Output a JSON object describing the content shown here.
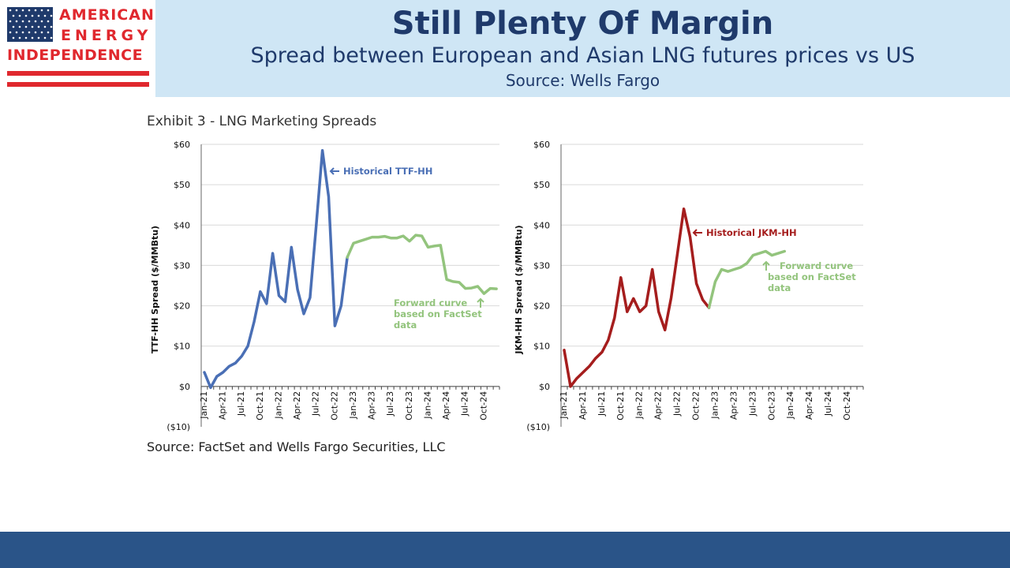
{
  "logo": {
    "line1": "AMERICAN",
    "line2": "ENERGY",
    "line3": "INDEPENDENCE",
    "colors": {
      "red": "#e0282e",
      "blue": "#1f3a6b"
    }
  },
  "header": {
    "title": "Still Plenty Of Margin",
    "subtitle": "Spread between European and Asian LNG futures prices vs US",
    "source": "Source: Wells Fargo"
  },
  "exhibit_title": "Exhibit 3 - LNG Marketing Spreads",
  "footnote": "Source: FactSet and Wells Fargo Securities, LLC",
  "colors": {
    "historical_ttf": "#4a6fb5",
    "historical_jkm": "#a51d1d",
    "forward": "#93c47d",
    "footer": "#2a5488"
  },
  "chart_data": [
    {
      "type": "line",
      "ylabel": "TTF-HH Spread ($/MMBtu)",
      "ylim": [
        -10,
        60
      ],
      "yticks": [
        "($10)",
        "$0",
        "$10",
        "$20",
        "$30",
        "$40",
        "$50",
        "$60"
      ],
      "xtick_labels": [
        "Jan-21",
        "Apr-21",
        "Jul-21",
        "Oct-21",
        "Jan-22",
        "Apr-22",
        "Jul-22",
        "Oct-22",
        "Jan-23",
        "Apr-23",
        "Jul-23",
        "Oct-23",
        "Jan-24",
        "Apr-24",
        "Jul-24",
        "Oct-24"
      ],
      "grid": true,
      "series": [
        {
          "name": "Historical TTF-HH",
          "annotation": "Historical TTF-HH",
          "points": [
            [
              0,
              3.5
            ],
            [
              1,
              -0.3
            ],
            [
              2,
              2.5
            ],
            [
              3,
              3.5
            ],
            [
              4,
              5
            ],
            [
              5,
              5.8
            ],
            [
              6,
              7.5
            ],
            [
              7,
              10
            ],
            [
              8,
              16
            ],
            [
              9,
              23.5
            ],
            [
              10,
              20.5
            ],
            [
              11,
              33
            ],
            [
              12,
              22.5
            ],
            [
              13,
              21
            ],
            [
              14,
              34.5
            ],
            [
              15,
              24
            ],
            [
              16,
              18
            ],
            [
              17,
              22
            ],
            [
              18,
              40
            ],
            [
              19,
              58.5
            ],
            [
              20,
              47
            ],
            [
              21,
              15
            ],
            [
              22,
              20
            ],
            [
              23,
              32
            ]
          ]
        },
        {
          "name": "Forward curve",
          "annotation": [
            "Forward curve",
            "based on FactSet",
            "data"
          ],
          "points": [
            [
              23,
              32
            ],
            [
              24,
              35.5
            ],
            [
              25,
              36
            ],
            [
              26,
              36.5
            ],
            [
              27,
              37
            ],
            [
              28,
              37
            ],
            [
              29,
              37.2
            ],
            [
              30,
              36.8
            ],
            [
              31,
              36.8
            ],
            [
              32,
              37.3
            ],
            [
              33,
              36
            ],
            [
              34,
              37.5
            ],
            [
              35,
              37.3
            ],
            [
              36,
              34.5
            ],
            [
              37,
              34.8
            ],
            [
              38,
              35
            ],
            [
              39,
              26.5
            ],
            [
              40,
              26
            ],
            [
              41,
              25.8
            ],
            [
              42,
              24.3
            ],
            [
              43,
              24.4
            ],
            [
              44,
              24.8
            ],
            [
              45,
              23
            ],
            [
              46,
              24.3
            ],
            [
              47,
              24.2
            ]
          ]
        }
      ]
    },
    {
      "type": "line",
      "ylabel": "JKM-HH Spread ($/MMBtu)",
      "ylim": [
        -10,
        60
      ],
      "yticks": [
        "($10)",
        "$0",
        "$10",
        "$20",
        "$30",
        "$40",
        "$50",
        "$60"
      ],
      "xtick_labels": [
        "Jan-21",
        "Apr-21",
        "Jul-21",
        "Oct-21",
        "Jan-22",
        "Apr-22",
        "Jul-22",
        "Oct-22",
        "Jan-23",
        "Apr-23",
        "Jul-23",
        "Oct-23",
        "Jan-24",
        "Apr-24",
        "Jul-24",
        "Oct-24"
      ],
      "grid": true,
      "series": [
        {
          "name": "Historical JKM-HH",
          "annotation": "Historical JKM-HH",
          "points": [
            [
              0,
              9
            ],
            [
              1,
              0
            ],
            [
              2,
              2
            ],
            [
              3,
              3.5
            ],
            [
              4,
              5
            ],
            [
              5,
              7
            ],
            [
              6,
              8.5
            ],
            [
              7,
              11.5
            ],
            [
              8,
              17
            ],
            [
              9,
              27
            ],
            [
              10,
              18.5
            ],
            [
              11,
              21.8
            ],
            [
              12,
              18.5
            ],
            [
              13,
              20
            ],
            [
              14,
              29
            ],
            [
              15,
              18.5
            ],
            [
              16,
              14
            ],
            [
              17,
              22
            ],
            [
              18,
              33
            ],
            [
              19,
              44
            ],
            [
              20,
              37
            ],
            [
              21,
              25.5
            ],
            [
              22,
              21.5
            ],
            [
              23,
              19.5
            ]
          ]
        },
        {
          "name": "Forward curve",
          "annotation": [
            "Forward curve",
            "based on FactSet",
            "data"
          ],
          "points": [
            [
              23,
              19.5
            ],
            [
              24,
              26
            ],
            [
              25,
              29
            ],
            [
              26,
              28.5
            ],
            [
              27,
              29
            ],
            [
              28,
              29.5
            ],
            [
              29,
              30.5
            ],
            [
              30,
              32.5
            ],
            [
              31,
              33
            ],
            [
              32,
              33.5
            ],
            [
              33,
              32.5
            ],
            [
              34,
              33
            ],
            [
              35,
              33.5
            ]
          ]
        }
      ]
    }
  ]
}
